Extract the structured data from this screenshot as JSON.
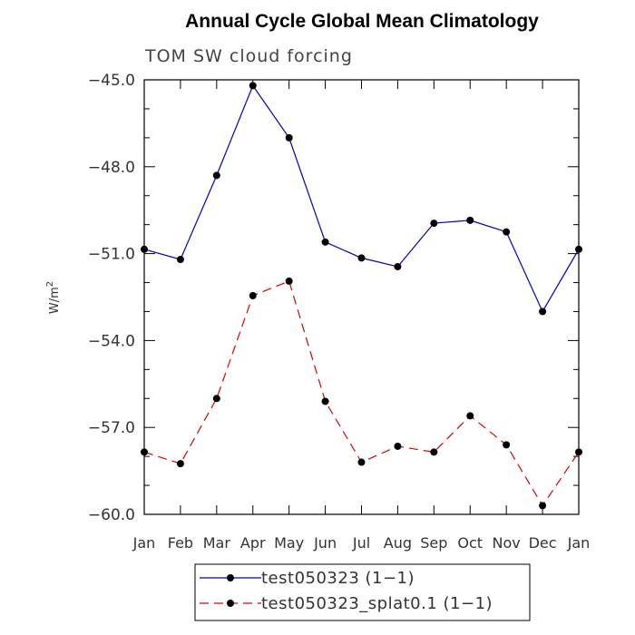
{
  "chart_data": {
    "type": "line",
    "title": "Annual Cycle Global Mean Climatology",
    "subtitle": "TOM SW cloud forcing",
    "ylabel": "W/m",
    "ylabel_sup": "2",
    "ylim": [
      -60.0,
      -45.0
    ],
    "yticks": [
      -45.0,
      -48.0,
      -51.0,
      -54.0,
      -57.0,
      -60.0
    ],
    "ytick_labels": [
      "−45.0",
      "−48.0",
      "−51.0",
      "−54.0",
      "−57.0",
      "−60.0"
    ],
    "categories": [
      "Jan",
      "Feb",
      "Mar",
      "Apr",
      "May",
      "Jun",
      "Jul",
      "Aug",
      "Sep",
      "Oct",
      "Nov",
      "Dec",
      "Jan"
    ],
    "series": [
      {
        "name": "test050323 (1−1)",
        "color": "#0000cc",
        "dash": "solid",
        "values": [
          -50.85,
          -51.2,
          -48.3,
          -45.2,
          -47.0,
          -50.6,
          -51.15,
          -51.45,
          -49.95,
          -49.85,
          -50.25,
          -53.0,
          -50.85
        ]
      },
      {
        "name": "test050323_splat0.1 (1−1)",
        "color": "#dd0000",
        "dash": "dashed",
        "values": [
          -57.85,
          -58.25,
          -56.0,
          -52.45,
          -51.95,
          -56.1,
          -58.2,
          -57.65,
          -57.85,
          -56.6,
          -57.6,
          -59.7,
          -57.85
        ]
      }
    ],
    "legend_position": "bottom"
  }
}
